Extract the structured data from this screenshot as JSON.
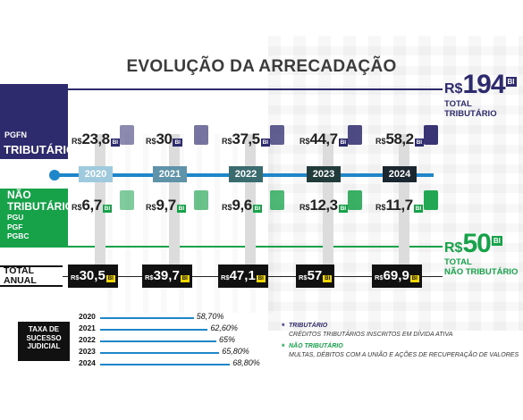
{
  "title": "EVOLUÇÃO DA ARRECADAÇÃO",
  "tributario": {
    "org": "PGFN",
    "label": "TRIBUTÁRIO",
    "star": "*",
    "total": {
      "rs": "R$",
      "value": "194",
      "bi": "BI",
      "caption_1": "TOTAL",
      "caption_2": "TRIBUTÁRIO"
    },
    "color": "#2e2a6e"
  },
  "nao_tributario": {
    "label_1": "NÃO",
    "label_2": "TRIBUTÁRIO",
    "star": "*",
    "orgs": [
      "PGU",
      "PGF",
      "PGBC"
    ],
    "total": {
      "rs": "R$",
      "value": "50",
      "bi": "BI",
      "caption_1": "TOTAL",
      "caption_2": "NÃO TRIBUTÁRIO"
    },
    "color": "#17a24a"
  },
  "total_anual": {
    "label_1": "TOTAL",
    "label_2": "ANUAL"
  },
  "rs": "R$",
  "bi": "BI",
  "chart_data": {
    "type": "table",
    "title": "EVOLUÇÃO DA ARRECADAÇÃO",
    "years": [
      "2020",
      "2021",
      "2022",
      "2023",
      "2024"
    ],
    "series": [
      {
        "name": "TRIBUTÁRIO",
        "unit": "R$ BI",
        "values": [
          "23,8",
          "30",
          "37,5",
          "44,7",
          "58,2"
        ]
      },
      {
        "name": "NÃO TRIBUTÁRIO",
        "unit": "R$ BI",
        "values": [
          "6,7",
          "9,7",
          "9,6",
          "12,3",
          "11,7"
        ]
      },
      {
        "name": "TOTAL ANUAL",
        "unit": "R$ BI",
        "values": [
          "30,5",
          "39,7",
          "47,1",
          "57",
          "69,9"
        ]
      }
    ],
    "success_rate": {
      "label": "TAXA DE SUCESSO JUDICIAL",
      "years": [
        "2020",
        "2021",
        "2022",
        "2023",
        "2024"
      ],
      "labels": [
        "58,70%",
        "62,60%",
        "65%",
        "65,80%",
        "68,80%"
      ],
      "values": [
        58.7,
        62.6,
        65.0,
        65.8,
        68.8
      ]
    },
    "year_colors": [
      "#9fc9dd",
      "#5e93aa",
      "#3a6b6f",
      "#203b3a",
      "#1b2730"
    ]
  },
  "legend": [
    {
      "star": "*",
      "head": "TRIBUTÁRIO",
      "desc": "CRÉDITOS TRIBUTÁRIOS INSCRITOS EM DÍVIDA ATIVA",
      "color": "#2e2a6e"
    },
    {
      "star": "*",
      "head": "NÃO TRIBUTÁRIO",
      "desc": "MULTAS, DÉBITOS COM A UNIÃO E AÇÕES DE RECUPERAÇÃO DE VALORES",
      "color": "#17a24a"
    }
  ]
}
